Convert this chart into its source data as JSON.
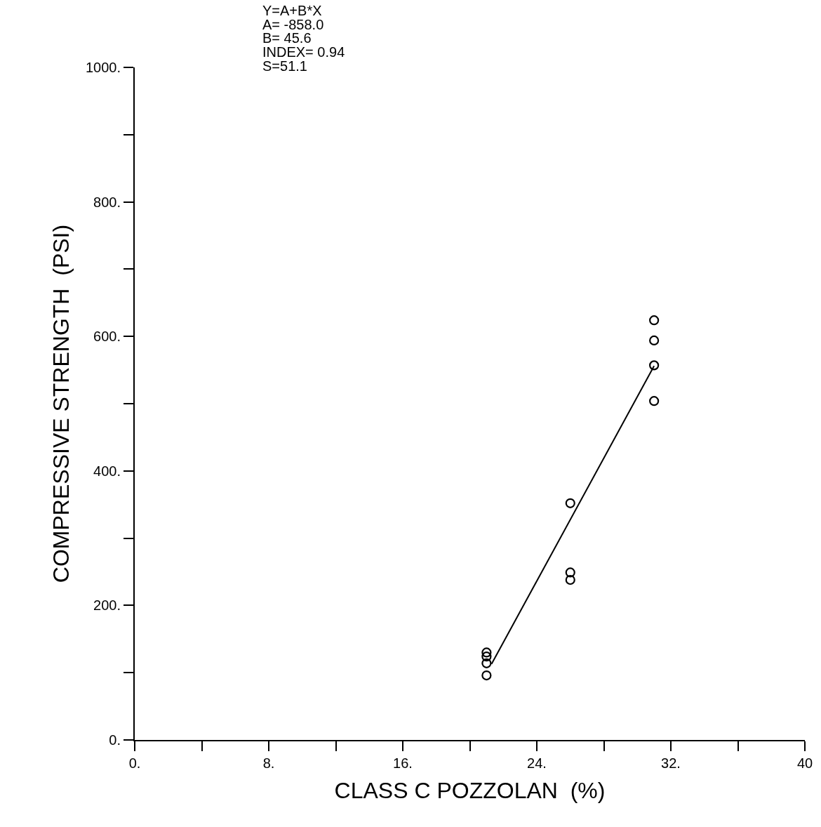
{
  "chart_data": {
    "type": "scatter",
    "xlabel": "CLASS C POZZOLAN  (%)",
    "ylabel": "COMPRESSIVE STRENGTH  (PSI)",
    "annotations": [
      "Y=A+B*X",
      "A= -858.0",
      "B= 45.6",
      "INDEX= 0.94",
      "S=51.1"
    ],
    "series": [
      {
        "color": "#000000",
        "x": [
          21,
          21,
          21,
          21,
          26,
          26,
          26,
          31,
          31,
          31,
          31
        ],
        "values": [
          96,
          114,
          124,
          130,
          352,
          249,
          238,
          624,
          594,
          557,
          504
        ]
      },
      {
        "type": "line",
        "color": "#000000",
        "marker": "none",
        "line_style": "solid",
        "x": [
          21.3,
          31
        ],
        "values": [
          113,
          556
        ]
      }
    ],
    "xlim": [
      0,
      40
    ],
    "ylim": [
      0,
      1000
    ],
    "xticks": [
      {
        "value": 0,
        "label": "0."
      },
      {
        "value": 4,
        "label": null
      },
      {
        "value": 8,
        "label": "8."
      },
      {
        "value": 12,
        "label": null
      },
      {
        "value": 16,
        "label": "16."
      },
      {
        "value": 20,
        "label": null
      },
      {
        "value": 24,
        "label": "24."
      },
      {
        "value": 28,
        "label": null
      },
      {
        "value": 32,
        "label": "32."
      },
      {
        "value": 36,
        "label": null
      },
      40
    ],
    "yticks": [
      {
        "value": 0,
        "label": "0."
      },
      {
        "value": 100,
        "label": null
      },
      {
        "value": 200,
        "label": "200."
      },
      {
        "value": 300,
        "label": null
      },
      {
        "value": 400,
        "label": "400."
      },
      {
        "value": 500,
        "label": null
      },
      {
        "value": 600,
        "label": "600."
      },
      {
        "value": 700,
        "label": null
      },
      {
        "value": 800,
        "label": "800."
      },
      {
        "value": 900,
        "label": null
      },
      {
        "value": 1000,
        "label": "1000."
      }
    ],
    "marker": "circle"
  }
}
